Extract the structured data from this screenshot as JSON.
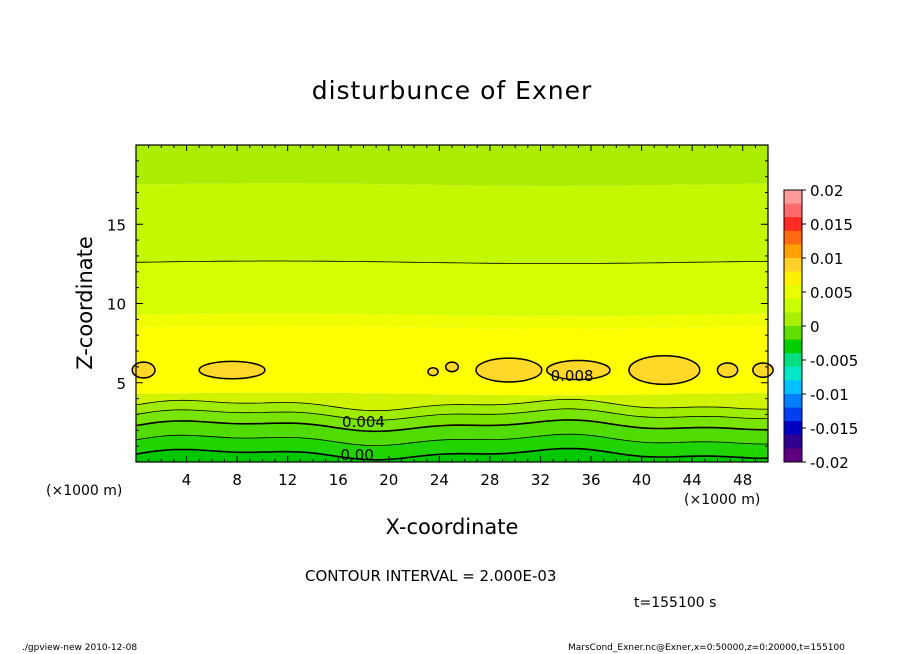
{
  "chart_data": {
    "type": "heatmap",
    "title": "disturbunce of Exner",
    "xlabel": "X-coordinate",
    "ylabel": "Z-coordinate",
    "x_unit_label": "(×1000 m)",
    "x_ticks": [
      "4",
      "8",
      "12",
      "16",
      "20",
      "24",
      "28",
      "32",
      "36",
      "40",
      "44",
      "48"
    ],
    "x_tick_values": [
      4,
      8,
      12,
      16,
      20,
      24,
      28,
      32,
      36,
      40,
      44,
      48
    ],
    "xlim": [
      0,
      50
    ],
    "y_ticks": [
      "5",
      "10",
      "15"
    ],
    "y_tick_values": [
      5,
      10,
      15
    ],
    "ylim": [
      0,
      20
    ],
    "colorbar": {
      "labels": [
        "0.02",
        "0.015",
        "0.01",
        "0.005",
        "0",
        "-0.005",
        "-0.01",
        "-0.015",
        "-0.02"
      ],
      "levels": [
        0.02,
        0.015,
        0.01,
        0.005,
        0,
        -0.005,
        -0.01,
        -0.015,
        -0.02
      ],
      "colors": [
        "#ff9a9a",
        "#ff6a6a",
        "#ff2a20",
        "#ff6a10",
        "#ffa000",
        "#ffd028",
        "#fff000",
        "#e8ff00",
        "#c8ff00",
        "#a8f000",
        "#60e000",
        "#00d000",
        "#00e080",
        "#00e8c8",
        "#00c0ff",
        "#0080ff",
        "#0040f0",
        "#0000c0",
        "#300090",
        "#600080"
      ]
    },
    "contour_labels": [
      {
        "text": "0.008",
        "x": 34.5,
        "y": 5.5
      },
      {
        "text": "0.004",
        "x": 18,
        "y": 2.6
      },
      {
        "text": "0.00",
        "x": 17.5,
        "y": 0.5
      }
    ],
    "contour_interval": "CONTOUR INTERVAL = 2.000E-03",
    "time": "t=155100  s"
  },
  "footer": {
    "left": "./gpview-new   2010-12-08",
    "right": "MarsCond_Exner.nc@Exner,x=0:50000,z=0:20000,t=155100"
  }
}
